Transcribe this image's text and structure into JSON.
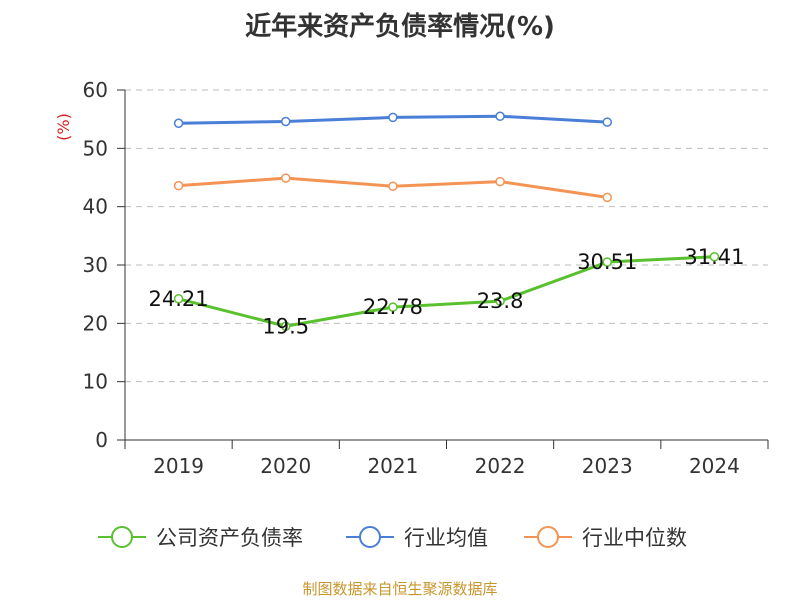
{
  "title": "近年来资产负债率情况(%)",
  "source": "制图数据来自恒生聚源数据库",
  "chart_data": {
    "type": "line",
    "title": "近年来资产负债率情况(%)",
    "ylabel": "(%)",
    "xlabel": "",
    "categories": [
      "2019",
      "2020",
      "2021",
      "2022",
      "2023",
      "2024"
    ],
    "ylim": [
      0,
      60
    ],
    "yticks": [
      0,
      10,
      20,
      30,
      40,
      50,
      60
    ],
    "grid": true,
    "legend_position": "bottom",
    "series": [
      {
        "name": "公司资产负债率",
        "color": "#5ac12e",
        "values": [
          24.21,
          19.5,
          22.78,
          23.8,
          30.51,
          31.41
        ],
        "labels": [
          "24.21",
          "19.5",
          "22.78",
          "23.8",
          "30.51",
          "31.41"
        ]
      },
      {
        "name": "行业均值",
        "color": "#4a7fd8",
        "values": [
          54.3,
          54.6,
          55.3,
          55.5,
          54.5,
          null
        ]
      },
      {
        "name": "行业中位数",
        "color": "#f39455",
        "values": [
          43.6,
          44.9,
          43.5,
          44.3,
          41.6,
          null
        ]
      }
    ]
  }
}
